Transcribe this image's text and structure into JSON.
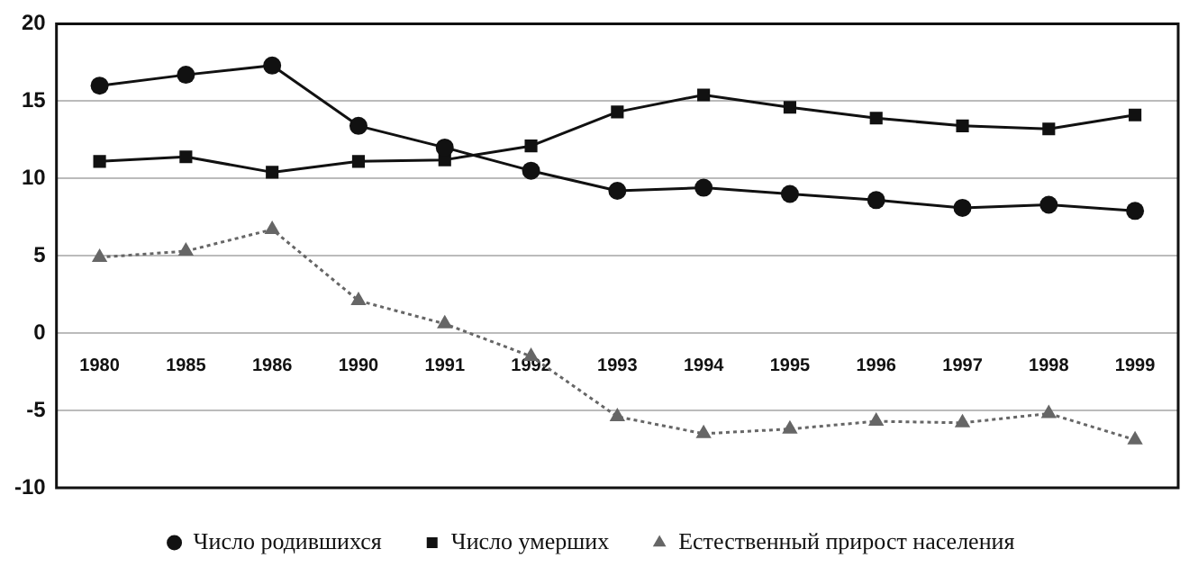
{
  "chart_data": {
    "type": "line",
    "categories": [
      "1980",
      "1985",
      "1986",
      "1990",
      "1991",
      "1992",
      "1993",
      "1994",
      "1995",
      "1996",
      "1997",
      "1998",
      "1999"
    ],
    "series": [
      {
        "name": "Число родившихся",
        "color": "#111111",
        "marker": "circle",
        "line_style": "solid",
        "values": [
          16.0,
          16.7,
          17.3,
          13.4,
          12.0,
          10.5,
          9.2,
          9.4,
          9.0,
          8.6,
          8.1,
          8.3,
          7.9
        ]
      },
      {
        "name": "Число умерших",
        "color": "#111111",
        "marker": "square",
        "line_style": "solid",
        "values": [
          11.1,
          11.4,
          10.4,
          11.1,
          11.2,
          12.1,
          14.3,
          15.4,
          14.6,
          13.9,
          13.4,
          13.2,
          14.1
        ]
      },
      {
        "name": "Естественный прирост населения",
        "color": "#666666",
        "marker": "triangle",
        "line_style": "dotted",
        "values": [
          4.9,
          5.3,
          6.7,
          2.1,
          0.6,
          -1.5,
          -5.4,
          -6.5,
          -6.2,
          -5.7,
          -5.8,
          -5.2,
          -6.9
        ]
      }
    ],
    "ylim": [
      -10,
      20
    ],
    "yticks": [
      -10,
      -5,
      0,
      5,
      10,
      15,
      20
    ],
    "grid": "y",
    "legend": "bottom"
  }
}
